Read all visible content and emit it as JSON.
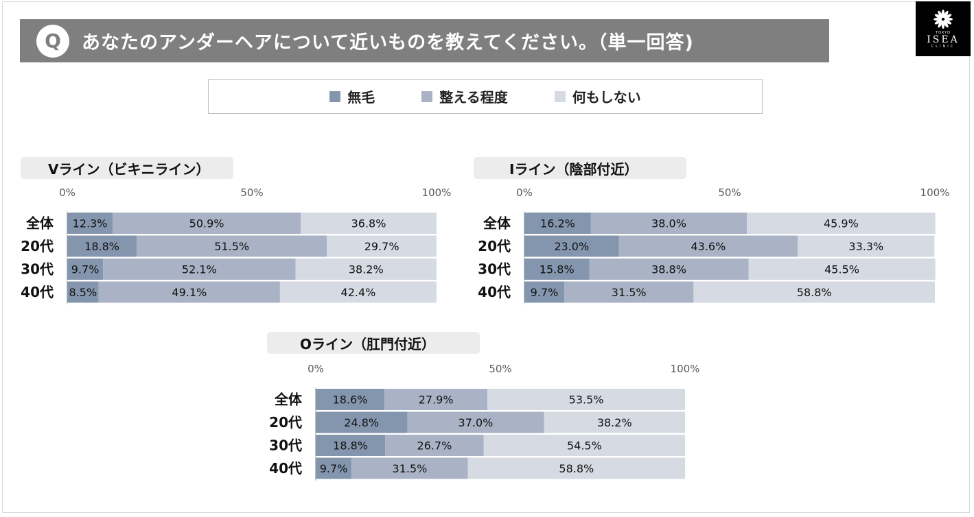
{
  "header": {
    "q_badge": "Q",
    "question": "あなたのアンダーヘアについて近いものを教えてください。（単一回答)"
  },
  "logo": {
    "top": "TOKYO",
    "name": "ISEA",
    "bottom": "CLINIC"
  },
  "colors": {
    "series": [
      "#8496ae",
      "#aab3c6",
      "#d5dae3"
    ]
  },
  "legend": {
    "items": [
      "無毛",
      "整える程度",
      "何もしない"
    ]
  },
  "chart_data": [
    {
      "type": "bar",
      "orientation": "horizontal-stacked-100",
      "title": "Vライン（ビキニライン）",
      "categories": [
        "全体",
        "20代",
        "30代",
        "40代"
      ],
      "axis_ticks": [
        "0%",
        "50%",
        "100%"
      ],
      "xlim": [
        0,
        100
      ],
      "series": [
        {
          "name": "無毛",
          "values": [
            12.3,
            18.8,
            9.7,
            8.5
          ]
        },
        {
          "name": "整える程度",
          "values": [
            50.9,
            51.5,
            52.1,
            49.1
          ]
        },
        {
          "name": "何もしない",
          "values": [
            36.8,
            29.7,
            38.2,
            42.4
          ]
        }
      ]
    },
    {
      "type": "bar",
      "orientation": "horizontal-stacked-100",
      "title": "Iライン（陰部付近）",
      "categories": [
        "全体",
        "20代",
        "30代",
        "40代"
      ],
      "axis_ticks": [
        "0%",
        "50%",
        "100%"
      ],
      "xlim": [
        0,
        100
      ],
      "series": [
        {
          "name": "無毛",
          "values": [
            16.2,
            23.0,
            15.8,
            9.7
          ]
        },
        {
          "name": "整える程度",
          "values": [
            38.0,
            43.6,
            38.8,
            31.5
          ]
        },
        {
          "name": "何もしない",
          "values": [
            45.9,
            33.3,
            45.5,
            58.8
          ]
        }
      ]
    },
    {
      "type": "bar",
      "orientation": "horizontal-stacked-100",
      "title": "Oライン（肛門付近）",
      "categories": [
        "全体",
        "20代",
        "30代",
        "40代"
      ],
      "axis_ticks": [
        "0%",
        "50%",
        "100%"
      ],
      "xlim": [
        0,
        100
      ],
      "series": [
        {
          "name": "無毛",
          "values": [
            18.6,
            24.8,
            18.8,
            9.7
          ]
        },
        {
          "name": "整える程度",
          "values": [
            27.9,
            37.0,
            26.7,
            31.5
          ]
        },
        {
          "name": "何もしない",
          "values": [
            53.5,
            38.2,
            54.5,
            58.8
          ]
        }
      ]
    }
  ]
}
